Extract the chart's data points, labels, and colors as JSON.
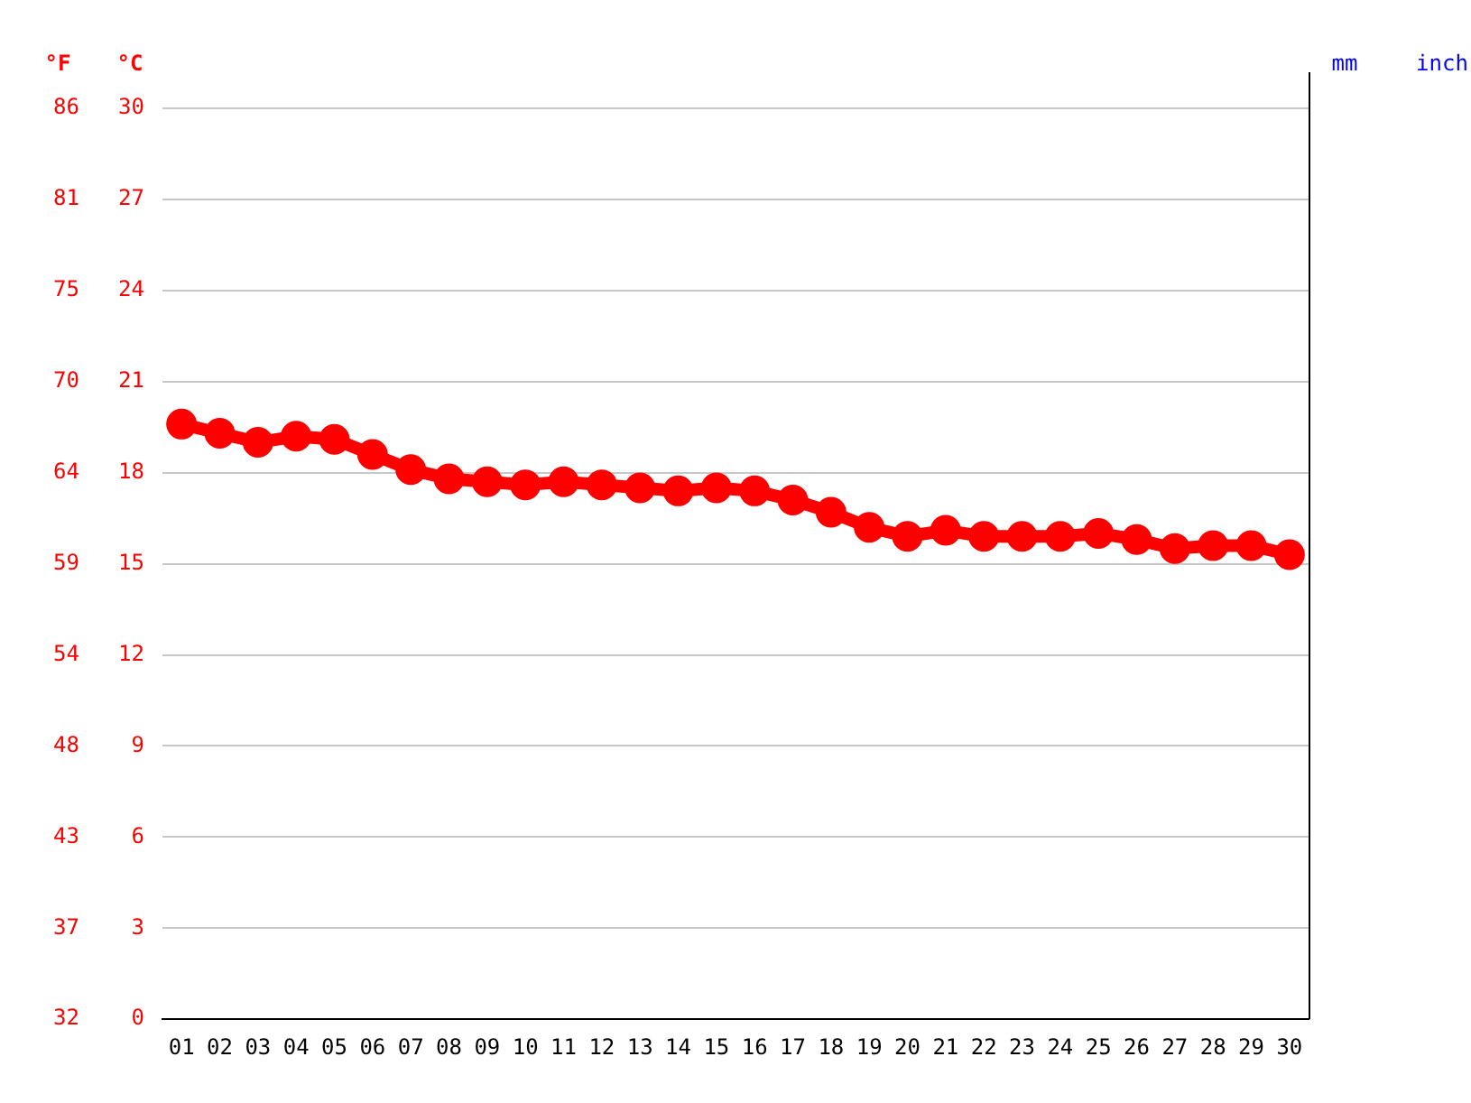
{
  "chart_data": {
    "type": "line",
    "ylabel": "°C",
    "y2label": "°F",
    "categories": [
      "01",
      "02",
      "03",
      "04",
      "05",
      "06",
      "07",
      "08",
      "09",
      "10",
      "11",
      "12",
      "13",
      "14",
      "15",
      "16",
      "17",
      "18",
      "19",
      "20",
      "21",
      "22",
      "23",
      "24",
      "25",
      "26",
      "27",
      "28",
      "29",
      "30"
    ],
    "series": [
      {
        "color": "#ff0000",
        "values": [
          19.6,
          19.3,
          19.0,
          19.2,
          19.1,
          18.6,
          18.1,
          17.8,
          17.7,
          17.6,
          17.7,
          17.6,
          17.5,
          17.4,
          17.5,
          17.4,
          17.1,
          16.7,
          16.2,
          15.9,
          16.1,
          15.9,
          15.9,
          15.9,
          16.0,
          15.8,
          15.5,
          15.6,
          15.6,
          15.3
        ]
      }
    ],
    "ylim": [
      0,
      30
    ],
    "yticks": [
      0,
      3,
      6,
      9,
      12,
      15,
      18,
      21,
      24,
      27,
      30
    ],
    "y2lim": [
      32,
      86
    ],
    "y2ticks": [
      {
        "value": 32,
        "label": "32"
      },
      {
        "value": 37.4,
        "label": "37"
      },
      {
        "value": 42.8,
        "label": "43"
      },
      {
        "value": 48.2,
        "label": "48"
      },
      {
        "value": 53.6,
        "label": "54"
      },
      {
        "value": 59,
        "label": "59"
      },
      {
        "value": 64.4,
        "label": "64"
      },
      {
        "value": 69.8,
        "label": "70"
      },
      {
        "value": 75.2,
        "label": "75"
      },
      {
        "value": 80.6,
        "label": "81"
      },
      {
        "value": 86,
        "label": "86"
      }
    ],
    "annotations": [
      "mm",
      "inch"
    ],
    "grid": "y",
    "legend": false,
    "marker": "circle",
    "line_style": "solid"
  }
}
